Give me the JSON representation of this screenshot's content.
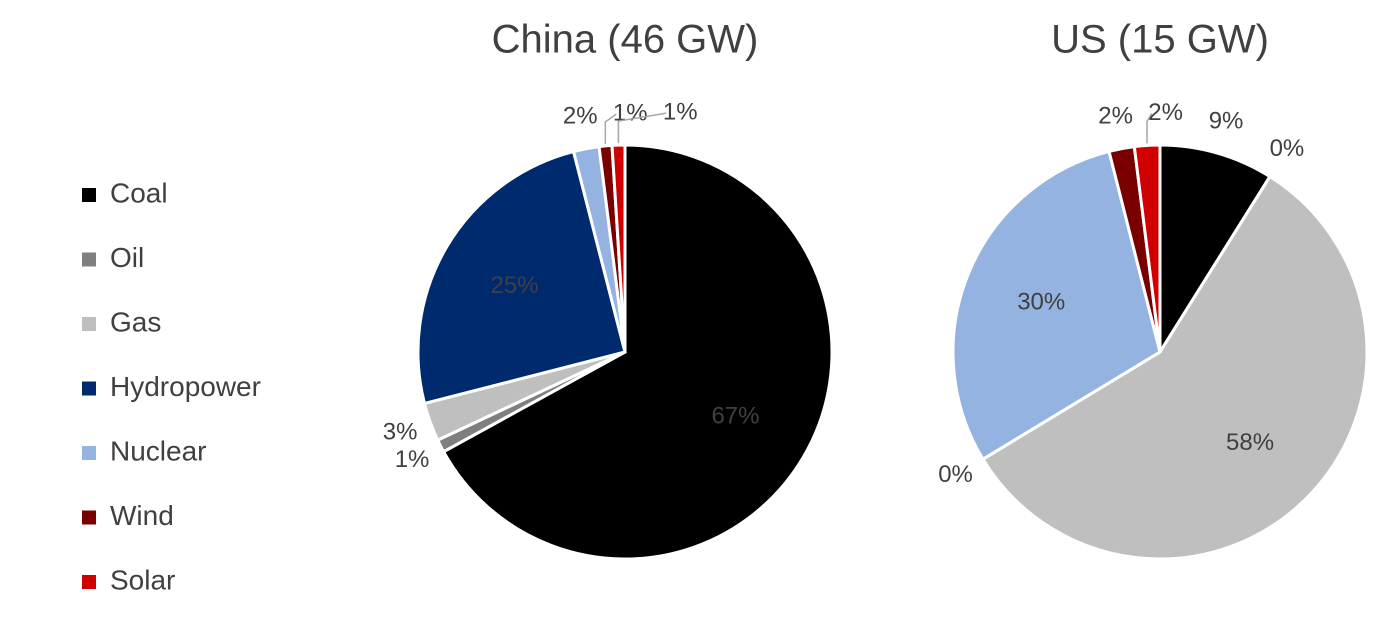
{
  "chart_data": [
    {
      "type": "pie",
      "title": "China (46 GW)",
      "categories": [
        "Coal",
        "Oil",
        "Gas",
        "Hydropower",
        "Nuclear",
        "Wind",
        "Solar"
      ],
      "values": [
        67,
        1,
        3,
        25,
        2,
        1,
        1
      ],
      "value_labels": [
        "67%",
        "1%",
        "3%",
        "25%",
        "2%",
        "1%",
        "1%"
      ],
      "colors": [
        "#000000",
        "#7f7f7f",
        "#bfbfbf",
        "#002a6e",
        "#95b3e0",
        "#7a0000",
        "#d00000"
      ]
    },
    {
      "type": "pie",
      "title": "US (15 GW)",
      "categories": [
        "Coal",
        "Oil",
        "Gas",
        "Hydropower",
        "Nuclear",
        "Wind",
        "Solar"
      ],
      "values": [
        9,
        0,
        58,
        0,
        30,
        2,
        2
      ],
      "value_labels": [
        "9%",
        "0%",
        "58%",
        "0%",
        "30%",
        "2%",
        "2%"
      ],
      "colors": [
        "#000000",
        "#7f7f7f",
        "#bfbfbf",
        "#002a6e",
        "#95b3e0",
        "#7a0000",
        "#d00000"
      ]
    }
  ]
}
